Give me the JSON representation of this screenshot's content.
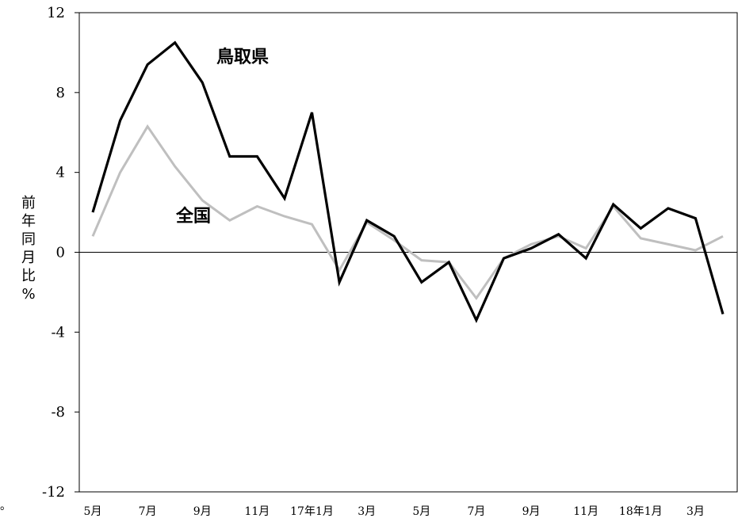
{
  "chart_data": {
    "type": "line",
    "ylabel": "前年同月比%",
    "ylim": [
      -12,
      12
    ],
    "yticks": [
      12,
      8,
      4,
      0,
      -4,
      -8,
      -12
    ],
    "xticks": [
      {
        "index": 0,
        "label": "5月"
      },
      {
        "index": 2,
        "label": "7月"
      },
      {
        "index": 4,
        "label": "9月"
      },
      {
        "index": 6,
        "label": "11月"
      },
      {
        "index": 8,
        "label": "17年1月"
      },
      {
        "index": 10,
        "label": "3月"
      },
      {
        "index": 12,
        "label": "5月"
      },
      {
        "index": 14,
        "label": "7月"
      },
      {
        "index": 16,
        "label": "9月"
      },
      {
        "index": 18,
        "label": "11月"
      },
      {
        "index": 20,
        "label": "18年1月"
      },
      {
        "index": 22,
        "label": "3月"
      }
    ],
    "grid": false,
    "series": [
      {
        "name": "鳥取県",
        "color": "#000000",
        "values": [
          2.0,
          6.6,
          9.4,
          10.5,
          8.5,
          4.8,
          4.8,
          2.7,
          7.0,
          -1.5,
          1.6,
          0.8,
          -1.5,
          -0.5,
          -3.4,
          -0.3,
          0.2,
          0.9,
          -0.3,
          2.4,
          1.2,
          2.2,
          1.7,
          -3.1
        ]
      },
      {
        "name": "全国",
        "color": "#bfbfbf",
        "values": [
          0.8,
          4.0,
          6.3,
          4.3,
          2.6,
          1.6,
          2.3,
          1.8,
          1.4,
          -0.9,
          1.5,
          0.6,
          -0.4,
          -0.5,
          -2.3,
          -0.3,
          0.4,
          0.8,
          0.2,
          2.3,
          0.7,
          0.4,
          0.1,
          0.8
        ]
      }
    ]
  },
  "edge_text": "。"
}
